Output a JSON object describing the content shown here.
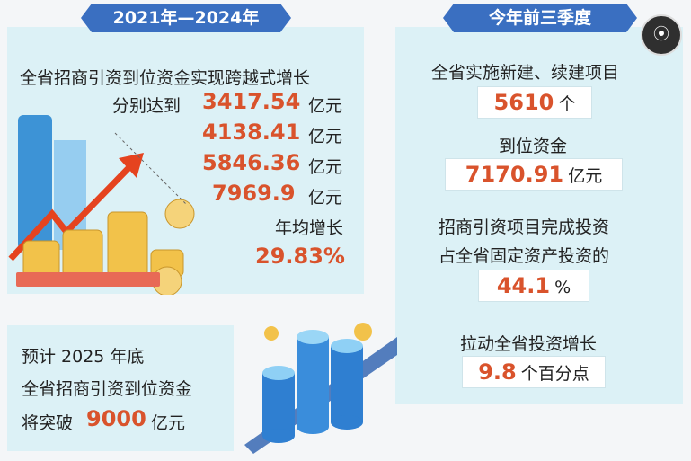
{
  "left": {
    "header": "2021年—2024年",
    "line1": "全省招商引资到位资金实现跨越式增长",
    "prefix": "分别达到",
    "values": [
      "3417.54",
      "4138.41",
      "5846.36",
      "7969.9"
    ],
    "unit": "亿元",
    "growth_label": "年均增长",
    "growth_value": "29.83%"
  },
  "bottom": {
    "line1": "预计 2025 年底",
    "line2": "全省招商引资到位资金",
    "prefix": "将突破",
    "value": "9000",
    "unit": "亿元"
  },
  "right": {
    "header": "今年前三季度",
    "line1": "全省实施新建、续建项目",
    "projects_value": "5610",
    "projects_unit": "个",
    "line2": "到位资金",
    "funds_value": "7170.91",
    "funds_unit": "亿元",
    "line3": "招商引资项目完成投资",
    "line4": "占全省固定资产投资的",
    "share_value": "44.1",
    "share_unit": "%",
    "line5": "拉动全省投资增长",
    "growth_value": "9.8",
    "growth_unit": "个百分点"
  },
  "ui": {
    "lens_icon": "lens-icon"
  },
  "colors": {
    "header_bg": "#3a6fc1",
    "panel_bg": "#dcf1f6",
    "number": "#d9532c"
  }
}
